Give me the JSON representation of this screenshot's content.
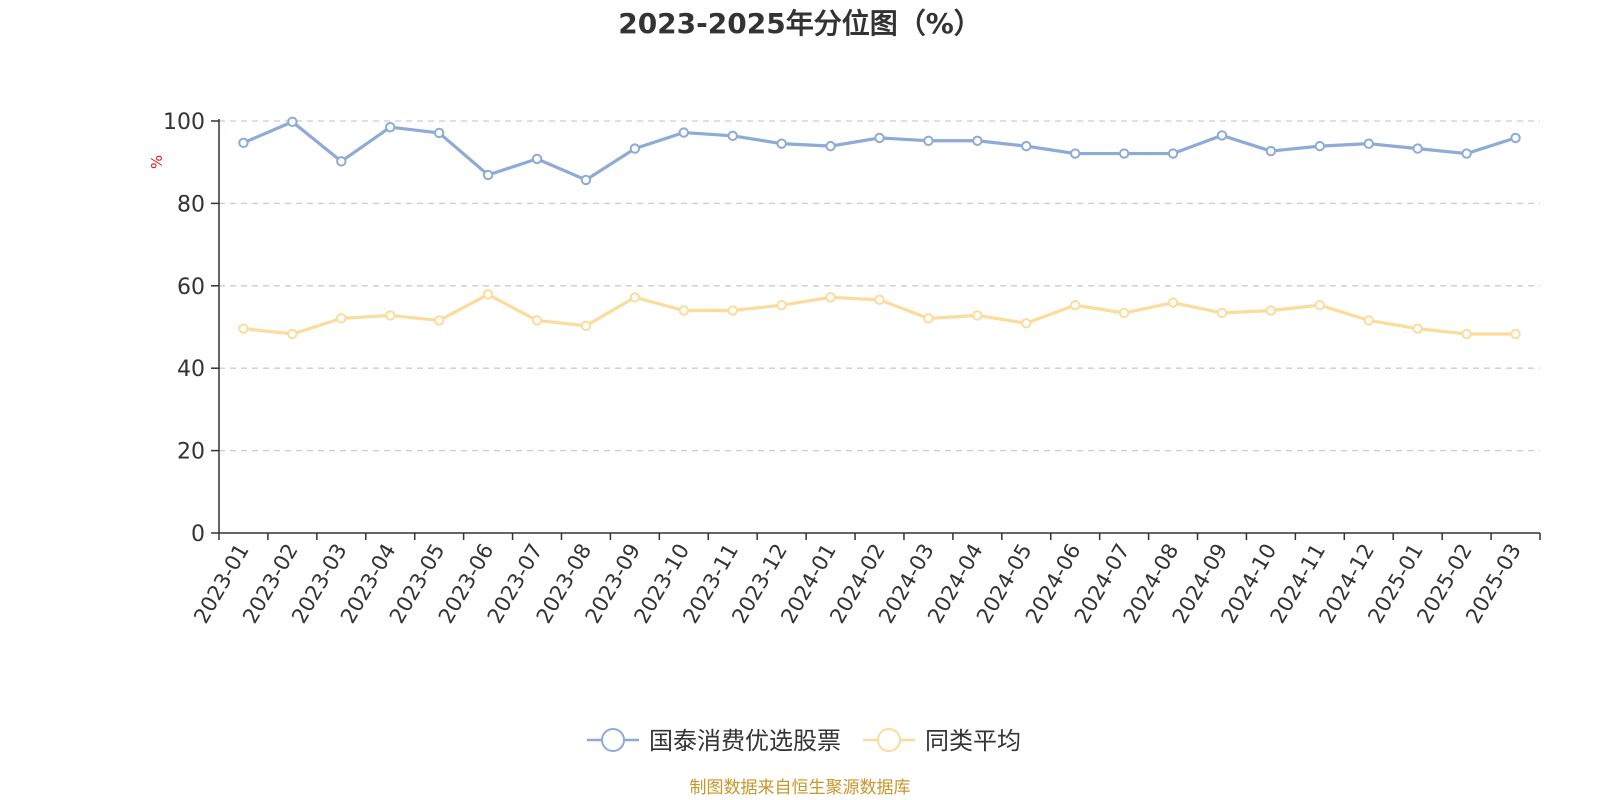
{
  "chart_data": {
    "type": "line",
    "title": "2023-2025年分位图（%）",
    "ylabel": "%",
    "ylim": [
      0,
      100
    ],
    "yticks": [
      "0",
      "20",
      "40",
      "60",
      "80",
      "100"
    ],
    "grid": true,
    "legend_position": "bottom-center",
    "categories": [
      "2023-01",
      "2023-02",
      "2023-03",
      "2023-04",
      "2023-05",
      "2023-06",
      "2023-07",
      "2023-08",
      "2023-09",
      "2023-10",
      "2023-11",
      "2023-12",
      "2024-01",
      "2024-02",
      "2024-03",
      "2024-04",
      "2024-05",
      "2024-06",
      "2024-07",
      "2024-08",
      "2024-09",
      "2024-10",
      "2024-11",
      "2024-12",
      "2025-01",
      "2025-02",
      "2025-03"
    ],
    "series": [
      {
        "name": "国泰消费优选股票",
        "color": "#8eaad6",
        "values": [
          94.7,
          99.8,
          90.2,
          98.5,
          97.1,
          86.9,
          90.8,
          85.7,
          93.3,
          97.2,
          96.4,
          94.5,
          93.9,
          95.9,
          95.2,
          95.2,
          93.9,
          92.1,
          92.1,
          92.1,
          96.5,
          92.7,
          93.9,
          94.5,
          93.3,
          92.1,
          95.9
        ]
      },
      {
        "name": "同类平均",
        "color": "#fbdc9c",
        "values": [
          49.6,
          48.3,
          52.1,
          52.8,
          51.6,
          57.9,
          51.6,
          50.3,
          57.2,
          54.0,
          54.0,
          55.3,
          57.2,
          56.6,
          52.1,
          52.8,
          50.9,
          55.3,
          53.4,
          55.9,
          53.4,
          54.0,
          55.3,
          51.6,
          49.6,
          48.3,
          48.3
        ]
      }
    ]
  },
  "source_note": "制图数据来自恒生聚源数据库"
}
